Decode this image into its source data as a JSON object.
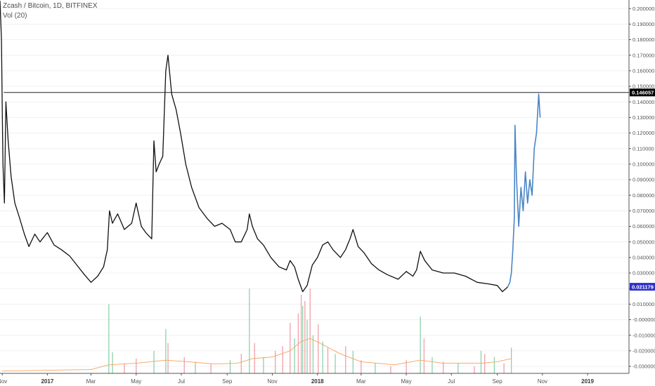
{
  "header": {
    "title": "Zcash / Bitcoin, 1D, BITFINEX",
    "volume_indicator": "Vol (20)"
  },
  "colors": {
    "price_line": "#111111",
    "price_line_recent": "#4a86c5",
    "volume_up": "#8fd1b0",
    "volume_down": "#f0a0a8",
    "volume_ma": "#f5a25d",
    "current_price_badge": "#3030c8",
    "level_badge": "#000000",
    "grid": "#f0f0f0",
    "axis": "#555555"
  },
  "chart_data": {
    "type": "line",
    "price_axis": {
      "ticks": [
        0.2,
        0.19,
        0.18,
        0.17,
        0.16,
        0.15,
        0.14,
        0.13,
        0.12,
        0.11,
        0.1,
        0.09,
        0.08,
        0.07,
        0.06,
        0.05,
        0.04,
        0.03,
        0.02,
        0.01,
        0.0,
        -0.01,
        -0.02,
        -0.03
      ],
      "tick_labels": [
        "0.200000",
        "0.190000",
        "0.180000",
        "0.170000",
        "0.160000",
        "0.150000",
        "0.140000",
        "0.130000",
        "0.120000",
        "0.110000",
        "0.100000",
        "0.090000",
        "0.080000",
        "0.070000",
        "0.060000",
        "0.050000",
        "0.040000",
        "0.030000",
        "0.020000",
        "0.010000",
        "-0.000000",
        "-0.010000",
        "-0.020000",
        "-0.030000"
      ],
      "ylim": [
        -0.0345,
        0.2055
      ]
    },
    "time_axis": {
      "range": [
        "2016-10-29",
        "2019-02-26"
      ],
      "ticks": [
        {
          "date": "2016-11-01",
          "label": "Nov",
          "bold": false
        },
        {
          "date": "2017-01-01",
          "label": "2017",
          "bold": true
        },
        {
          "date": "2017-03-01",
          "label": "Mar",
          "bold": false
        },
        {
          "date": "2017-05-01",
          "label": "May",
          "bold": false
        },
        {
          "date": "2017-07-01",
          "label": "Jul",
          "bold": false
        },
        {
          "date": "2017-09-01",
          "label": "Sep",
          "bold": false
        },
        {
          "date": "2017-11-01",
          "label": "Nov",
          "bold": false
        },
        {
          "date": "2018-01-01",
          "label": "2018",
          "bold": true
        },
        {
          "date": "2018-03-01",
          "label": "Mar",
          "bold": false
        },
        {
          "date": "2018-05-01",
          "label": "May",
          "bold": false
        },
        {
          "date": "2018-07-01",
          "label": "Jul",
          "bold": false
        },
        {
          "date": "2018-09-01",
          "label": "Sep",
          "bold": false
        },
        {
          "date": "2018-11-01",
          "label": "Nov",
          "bold": false
        },
        {
          "date": "2019-01-01",
          "label": "2019",
          "bold": true
        }
      ]
    },
    "horizontal_level": {
      "value": 0.146057,
      "label": "0.146057",
      "start_date": "2016-11-03"
    },
    "current_price": {
      "value": 0.021179,
      "label": "0.021179"
    },
    "price_series": {
      "name": "",
      "points": [
        [
          "2016-10-29",
          0.205
        ],
        [
          "2016-10-31",
          0.18
        ],
        [
          "2016-11-01",
          0.135
        ],
        [
          "2016-11-02",
          0.1
        ],
        [
          "2016-11-04",
          0.075
        ],
        [
          "2016-11-06",
          0.14
        ],
        [
          "2016-11-09",
          0.115
        ],
        [
          "2016-11-13",
          0.092
        ],
        [
          "2016-11-18",
          0.075
        ],
        [
          "2016-11-24",
          0.066
        ],
        [
          "2016-12-01",
          0.055
        ],
        [
          "2016-12-07",
          0.047
        ],
        [
          "2016-12-15",
          0.055
        ],
        [
          "2016-12-22",
          0.05
        ],
        [
          "2017-01-01",
          0.056
        ],
        [
          "2017-01-10",
          0.048
        ],
        [
          "2017-01-20",
          0.045
        ],
        [
          "2017-01-31",
          0.041
        ],
        [
          "2017-02-10",
          0.035
        ],
        [
          "2017-02-20",
          0.029
        ],
        [
          "2017-03-01",
          0.024
        ],
        [
          "2017-03-10",
          0.028
        ],
        [
          "2017-03-18",
          0.034
        ],
        [
          "2017-03-23",
          0.045
        ],
        [
          "2017-03-26",
          0.07
        ],
        [
          "2017-03-30",
          0.062
        ],
        [
          "2017-04-06",
          0.068
        ],
        [
          "2017-04-15",
          0.058
        ],
        [
          "2017-04-25",
          0.062
        ],
        [
          "2017-05-01",
          0.075
        ],
        [
          "2017-05-08",
          0.06
        ],
        [
          "2017-05-14",
          0.056
        ],
        [
          "2017-05-22",
          0.052
        ],
        [
          "2017-05-25",
          0.115
        ],
        [
          "2017-05-28",
          0.095
        ],
        [
          "2017-06-01",
          0.1
        ],
        [
          "2017-06-06",
          0.105
        ],
        [
          "2017-06-10",
          0.16
        ],
        [
          "2017-06-13",
          0.17
        ],
        [
          "2017-06-18",
          0.145
        ],
        [
          "2017-06-24",
          0.135
        ],
        [
          "2017-06-30",
          0.12
        ],
        [
          "2017-07-07",
          0.1
        ],
        [
          "2017-07-15",
          0.085
        ],
        [
          "2017-07-25",
          0.072
        ],
        [
          "2017-08-05",
          0.065
        ],
        [
          "2017-08-15",
          0.06
        ],
        [
          "2017-08-25",
          0.062
        ],
        [
          "2017-09-05",
          0.058
        ],
        [
          "2017-09-12",
          0.05
        ],
        [
          "2017-09-20",
          0.05
        ],
        [
          "2017-09-28",
          0.058
        ],
        [
          "2017-10-01",
          0.068
        ],
        [
          "2017-10-05",
          0.06
        ],
        [
          "2017-10-12",
          0.052
        ],
        [
          "2017-10-20",
          0.048
        ],
        [
          "2017-10-30",
          0.04
        ],
        [
          "2017-11-10",
          0.034
        ],
        [
          "2017-11-20",
          0.032
        ],
        [
          "2017-11-25",
          0.038
        ],
        [
          "2017-12-01",
          0.034
        ],
        [
          "2017-12-06",
          0.026
        ],
        [
          "2017-12-12",
          0.018
        ],
        [
          "2017-12-18",
          0.022
        ],
        [
          "2017-12-25",
          0.035
        ],
        [
          "2018-01-01",
          0.04
        ],
        [
          "2018-01-08",
          0.048
        ],
        [
          "2018-01-15",
          0.05
        ],
        [
          "2018-01-22",
          0.045
        ],
        [
          "2018-02-01",
          0.04
        ],
        [
          "2018-02-08",
          0.045
        ],
        [
          "2018-02-14",
          0.052
        ],
        [
          "2018-02-18",
          0.058
        ],
        [
          "2018-02-25",
          0.047
        ],
        [
          "2018-03-05",
          0.043
        ],
        [
          "2018-03-15",
          0.036
        ],
        [
          "2018-03-25",
          0.032
        ],
        [
          "2018-04-05",
          0.029
        ],
        [
          "2018-04-20",
          0.026
        ],
        [
          "2018-05-01",
          0.031
        ],
        [
          "2018-05-10",
          0.028
        ],
        [
          "2018-05-15",
          0.032
        ],
        [
          "2018-05-20",
          0.044
        ],
        [
          "2018-05-26",
          0.038
        ],
        [
          "2018-06-05",
          0.032
        ],
        [
          "2018-06-20",
          0.03
        ],
        [
          "2018-07-05",
          0.03
        ],
        [
          "2018-07-20",
          0.028
        ],
        [
          "2018-08-05",
          0.024
        ],
        [
          "2018-08-20",
          0.023
        ],
        [
          "2018-09-01",
          0.022
        ],
        [
          "2018-09-08",
          0.018
        ],
        [
          "2018-09-15",
          0.021
        ]
      ]
    },
    "recent_series": {
      "name": "",
      "points": [
        [
          "2018-09-15",
          0.021
        ],
        [
          "2018-09-18",
          0.024
        ],
        [
          "2018-09-20",
          0.03
        ],
        [
          "2018-09-22",
          0.045
        ],
        [
          "2018-09-24",
          0.065
        ],
        [
          "2018-09-25",
          0.125
        ],
        [
          "2018-09-27",
          0.09
        ],
        [
          "2018-09-30",
          0.06
        ],
        [
          "2018-10-03",
          0.085
        ],
        [
          "2018-10-06",
          0.07
        ],
        [
          "2018-10-09",
          0.095
        ],
        [
          "2018-10-12",
          0.075
        ],
        [
          "2018-10-15",
          0.09
        ],
        [
          "2018-10-18",
          0.08
        ],
        [
          "2018-10-21",
          0.11
        ],
        [
          "2018-10-24",
          0.12
        ],
        [
          "2018-10-27",
          0.145
        ],
        [
          "2018-10-29",
          0.13
        ]
      ]
    },
    "volume": {
      "baseline": -0.0345,
      "bars": [
        [
          "2017-03-25",
          0.01,
          "up"
        ],
        [
          "2017-03-30",
          -0.021,
          "up"
        ],
        [
          "2017-04-15",
          -0.028,
          "down"
        ],
        [
          "2017-05-01",
          -0.025,
          "down"
        ],
        [
          "2017-05-25",
          -0.02,
          "up"
        ],
        [
          "2017-06-10",
          -0.006,
          "up"
        ],
        [
          "2017-06-13",
          -0.015,
          "down"
        ],
        [
          "2017-07-05",
          -0.024,
          "down"
        ],
        [
          "2017-07-20",
          -0.027,
          "up"
        ],
        [
          "2017-08-10",
          -0.028,
          "down"
        ],
        [
          "2017-09-05",
          -0.026,
          "up"
        ],
        [
          "2017-09-20",
          -0.022,
          "down"
        ],
        [
          "2017-10-01",
          0.02,
          "up"
        ],
        [
          "2017-10-08",
          -0.015,
          "down"
        ],
        [
          "2017-10-20",
          -0.024,
          "up"
        ],
        [
          "2017-11-05",
          -0.02,
          "down"
        ],
        [
          "2017-11-15",
          -0.017,
          "down"
        ],
        [
          "2017-11-25",
          -0.002,
          "down"
        ],
        [
          "2017-12-01",
          -0.012,
          "up"
        ],
        [
          "2017-12-06",
          0.004,
          "down"
        ],
        [
          "2017-12-10",
          0.016,
          "down"
        ],
        [
          "2017-12-12",
          0.009,
          "up"
        ],
        [
          "2017-12-15",
          0.012,
          "down"
        ],
        [
          "2017-12-18",
          0.0,
          "up"
        ],
        [
          "2017-12-22",
          0.02,
          "down"
        ],
        [
          "2017-12-26",
          -0.01,
          "up"
        ],
        [
          "2018-01-02",
          -0.003,
          "down"
        ],
        [
          "2018-01-08",
          -0.014,
          "up"
        ],
        [
          "2018-01-15",
          -0.018,
          "down"
        ],
        [
          "2018-01-25",
          -0.022,
          "up"
        ],
        [
          "2018-02-08",
          -0.017,
          "down"
        ],
        [
          "2018-02-18",
          -0.02,
          "up"
        ],
        [
          "2018-03-01",
          -0.026,
          "down"
        ],
        [
          "2018-03-20",
          -0.028,
          "up"
        ],
        [
          "2018-04-10",
          -0.03,
          "down"
        ],
        [
          "2018-05-01",
          -0.026,
          "down"
        ],
        [
          "2018-05-20",
          0.002,
          "up"
        ],
        [
          "2018-05-25",
          -0.012,
          "down"
        ],
        [
          "2018-06-05",
          -0.024,
          "up"
        ],
        [
          "2018-06-20",
          -0.027,
          "down"
        ],
        [
          "2018-07-10",
          -0.028,
          "up"
        ],
        [
          "2018-08-01",
          -0.03,
          "down"
        ],
        [
          "2018-08-10",
          -0.02,
          "up"
        ],
        [
          "2018-08-15",
          -0.022,
          "down"
        ],
        [
          "2018-08-28",
          -0.024,
          "up"
        ],
        [
          "2018-09-10",
          -0.028,
          "down"
        ],
        [
          "2018-09-20",
          -0.018,
          "up"
        ]
      ]
    },
    "volume_ma": {
      "points": [
        [
          "2016-11-01",
          -0.033
        ],
        [
          "2017-01-01",
          -0.0325
        ],
        [
          "2017-03-01",
          -0.032
        ],
        [
          "2017-03-25",
          -0.029
        ],
        [
          "2017-05-01",
          -0.028
        ],
        [
          "2017-06-10",
          -0.026
        ],
        [
          "2017-07-10",
          -0.027
        ],
        [
          "2017-08-15",
          -0.0285
        ],
        [
          "2017-09-15",
          -0.028
        ],
        [
          "2017-10-05",
          -0.025
        ],
        [
          "2017-11-01",
          -0.024
        ],
        [
          "2017-11-25",
          -0.02
        ],
        [
          "2017-12-10",
          -0.014
        ],
        [
          "2017-12-22",
          -0.012
        ],
        [
          "2018-01-08",
          -0.016
        ],
        [
          "2018-02-01",
          -0.022
        ],
        [
          "2018-03-01",
          -0.027
        ],
        [
          "2018-04-15",
          -0.029
        ],
        [
          "2018-05-20",
          -0.026
        ],
        [
          "2018-06-20",
          -0.028
        ],
        [
          "2018-08-10",
          -0.028
        ],
        [
          "2018-09-01",
          -0.027
        ],
        [
          "2018-09-20",
          -0.025
        ]
      ]
    }
  }
}
